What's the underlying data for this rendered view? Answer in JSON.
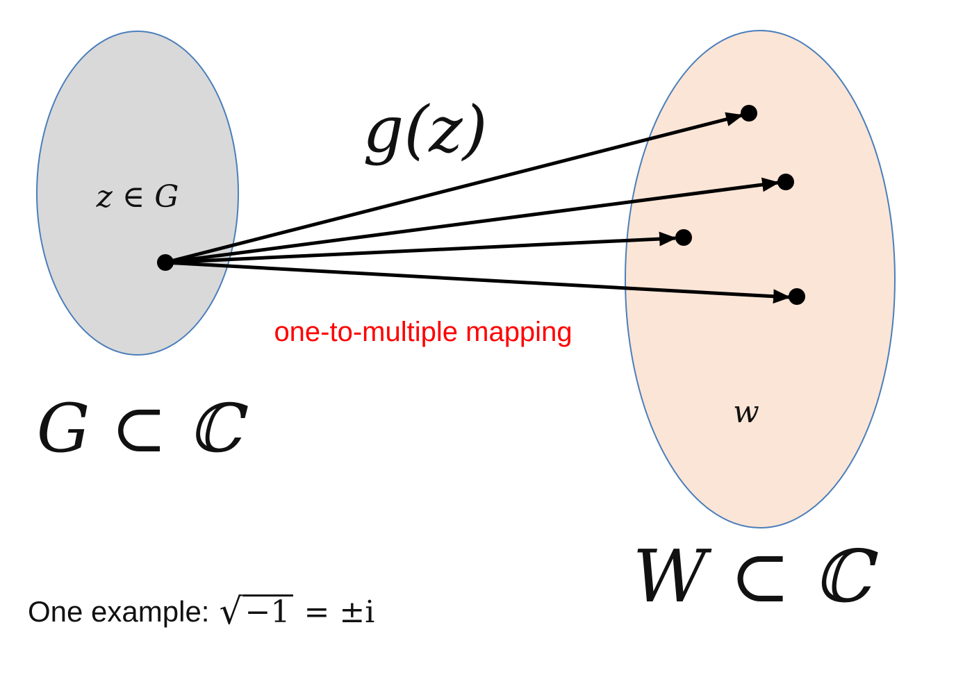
{
  "domain_set_label": "z ∈ G",
  "domain_label": "G ⊂ ℂ",
  "codomain_point_label": "w",
  "codomain_label": "W ⊂ ℂ",
  "function_label": "g(z)",
  "mapping_note": "one-to-multiple mapping",
  "example": {
    "prefix": "One example:",
    "radicand": "−1",
    "result": "= ±i"
  },
  "colors": {
    "domain_fill": "#d9d9d9",
    "codomain_fill": "#fbe5d6",
    "outline": "#4a7ebb",
    "note": "#ff0000",
    "ink": "#000000"
  }
}
